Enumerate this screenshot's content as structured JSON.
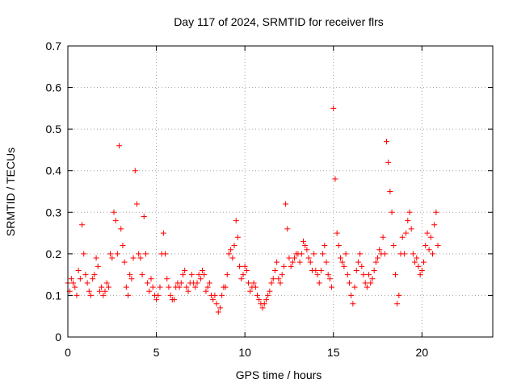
{
  "chart_data": {
    "type": "scatter",
    "title": "Day 117 of 2024, SRMTID for receiver flrs",
    "xlabel": "GPS time / hours",
    "ylabel": "SRMTID / TECUs",
    "xlim": [
      0,
      24
    ],
    "ylim": [
      0,
      0.7
    ],
    "x_ticks": [
      0,
      5,
      10,
      15,
      20
    ],
    "x_tick_labels": [
      "0",
      "5",
      "10",
      "15",
      "20"
    ],
    "y_ticks": [
      0,
      0.1,
      0.2,
      0.3,
      0.4,
      0.5,
      0.6,
      0.7
    ],
    "y_tick_labels": [
      "0",
      "0.1",
      "0.2",
      "0.3",
      "0.4",
      "0.5",
      "0.6",
      "0.7"
    ],
    "grid": true,
    "marker": "plus",
    "marker_color": "#ff0000",
    "series": [
      {
        "name": "SRMTID",
        "x": [
          0.0,
          0.1,
          0.2,
          0.3,
          0.4,
          0.5,
          0.6,
          0.7,
          0.8,
          0.9,
          1.0,
          1.1,
          1.2,
          1.3,
          1.4,
          1.5,
          1.6,
          1.7,
          1.8,
          1.9,
          2.0,
          2.1,
          2.2,
          2.3,
          2.4,
          2.5,
          2.6,
          2.7,
          2.8,
          2.9,
          3.0,
          3.1,
          3.2,
          3.3,
          3.4,
          3.5,
          3.6,
          3.7,
          3.8,
          3.9,
          4.0,
          4.1,
          4.2,
          4.3,
          4.4,
          4.5,
          4.6,
          4.7,
          4.8,
          4.9,
          5.0,
          5.1,
          5.2,
          5.3,
          5.4,
          5.5,
          5.6,
          5.7,
          5.8,
          5.9,
          6.0,
          6.1,
          6.2,
          6.3,
          6.4,
          6.5,
          6.6,
          6.7,
          6.8,
          6.9,
          7.0,
          7.1,
          7.2,
          7.3,
          7.4,
          7.5,
          7.6,
          7.7,
          7.8,
          7.9,
          8.0,
          8.1,
          8.2,
          8.3,
          8.4,
          8.5,
          8.6,
          8.7,
          8.8,
          8.9,
          9.0,
          9.1,
          9.2,
          9.3,
          9.4,
          9.5,
          9.6,
          9.7,
          9.8,
          9.9,
          10.0,
          10.1,
          10.2,
          10.3,
          10.4,
          10.5,
          10.6,
          10.7,
          10.8,
          10.9,
          11.0,
          11.1,
          11.2,
          11.3,
          11.4,
          11.5,
          11.6,
          11.7,
          11.8,
          11.9,
          12.0,
          12.1,
          12.2,
          12.3,
          12.4,
          12.5,
          12.6,
          12.7,
          12.8,
          12.9,
          13.0,
          13.1,
          13.2,
          13.3,
          13.4,
          13.5,
          13.6,
          13.7,
          13.8,
          13.9,
          14.0,
          14.1,
          14.2,
          14.3,
          14.4,
          14.5,
          14.6,
          14.7,
          14.8,
          14.9,
          15.0,
          15.1,
          15.2,
          15.3,
          15.4,
          15.5,
          15.6,
          15.7,
          15.8,
          15.9,
          16.0,
          16.1,
          16.2,
          16.3,
          16.4,
          16.5,
          16.6,
          16.7,
          16.8,
          16.9,
          17.0,
          17.1,
          17.2,
          17.3,
          17.4,
          17.5,
          17.6,
          17.7,
          17.8,
          17.9,
          18.0,
          18.1,
          18.2,
          18.3,
          18.4,
          18.5,
          18.6,
          18.7,
          18.8,
          18.9,
          19.0,
          19.1,
          19.2,
          19.3,
          19.4,
          19.5,
          19.6,
          19.7,
          19.8,
          19.9,
          20.0,
          20.1,
          20.2,
          20.3,
          20.4,
          20.5,
          20.6,
          20.7,
          20.8,
          20.9
        ],
        "y": [
          0.13,
          0.11,
          0.14,
          0.13,
          0.12,
          0.1,
          0.16,
          0.14,
          0.27,
          0.2,
          0.15,
          0.13,
          0.11,
          0.1,
          0.14,
          0.15,
          0.19,
          0.17,
          0.11,
          0.12,
          0.1,
          0.11,
          0.13,
          0.12,
          0.2,
          0.19,
          0.3,
          0.28,
          0.2,
          0.46,
          0.26,
          0.22,
          0.18,
          0.12,
          0.1,
          0.15,
          0.14,
          0.19,
          0.4,
          0.32,
          0.2,
          0.19,
          0.15,
          0.29,
          0.2,
          0.13,
          0.11,
          0.14,
          0.12,
          0.1,
          0.09,
          0.1,
          0.12,
          0.2,
          0.25,
          0.2,
          0.14,
          0.12,
          0.1,
          0.09,
          0.09,
          0.12,
          0.13,
          0.12,
          0.13,
          0.15,
          0.16,
          0.12,
          0.11,
          0.13,
          0.15,
          0.13,
          0.12,
          0.13,
          0.15,
          0.14,
          0.16,
          0.15,
          0.11,
          0.12,
          0.13,
          0.1,
          0.09,
          0.1,
          0.08,
          0.06,
          0.07,
          0.1,
          0.12,
          0.12,
          0.15,
          0.2,
          0.21,
          0.19,
          0.22,
          0.28,
          0.24,
          0.17,
          0.14,
          0.15,
          0.17,
          0.16,
          0.13,
          0.11,
          0.12,
          0.13,
          0.12,
          0.1,
          0.09,
          0.08,
          0.07,
          0.08,
          0.09,
          0.1,
          0.11,
          0.13,
          0.14,
          0.16,
          0.18,
          0.14,
          0.13,
          0.15,
          0.17,
          0.32,
          0.26,
          0.19,
          0.17,
          0.18,
          0.19,
          0.2,
          0.2,
          0.18,
          0.2,
          0.23,
          0.22,
          0.21,
          0.19,
          0.18,
          0.16,
          0.2,
          0.16,
          0.15,
          0.13,
          0.16,
          0.2,
          0.22,
          0.18,
          0.15,
          0.14,
          0.12,
          0.55,
          0.38,
          0.25,
          0.22,
          0.19,
          0.18,
          0.17,
          0.2,
          0.15,
          0.13,
          0.1,
          0.08,
          0.12,
          0.16,
          0.18,
          0.2,
          0.17,
          0.15,
          0.13,
          0.12,
          0.15,
          0.13,
          0.14,
          0.16,
          0.18,
          0.19,
          0.21,
          0.2,
          0.24,
          0.2,
          0.47,
          0.42,
          0.35,
          0.3,
          0.22,
          0.15,
          0.08,
          0.1,
          0.2,
          0.24,
          0.2,
          0.25,
          0.28,
          0.3,
          0.26,
          0.2,
          0.18,
          0.19,
          0.17,
          0.15,
          0.16,
          0.18,
          0.22,
          0.25,
          0.21,
          0.24,
          0.2,
          0.27,
          0.3,
          0.22
        ]
      }
    ]
  }
}
